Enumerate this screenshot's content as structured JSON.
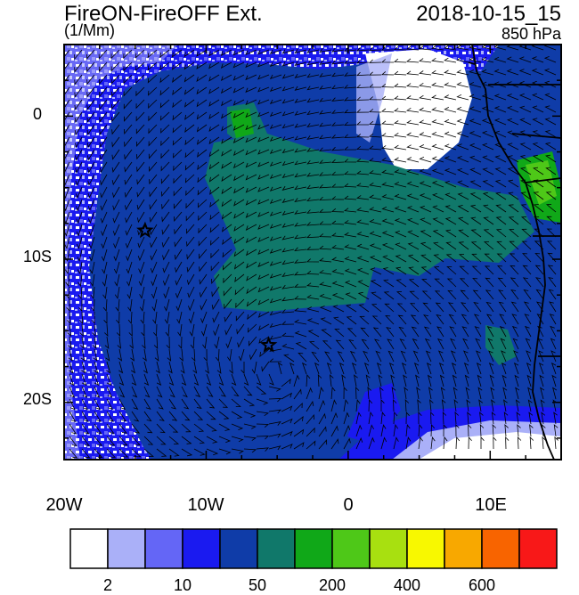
{
  "header": {
    "title": "FireON-FireOFF Ext.",
    "units": "(1/Mm)",
    "datetime": "2018-10-15_15",
    "level": "850 hPa"
  },
  "axes": {
    "y_ticks": [
      "0",
      "10S",
      "20S"
    ],
    "x_ticks": [
      "20W",
      "10W",
      "0",
      "10E"
    ],
    "lon_range": [
      -20,
      15
    ],
    "lat_range": [
      -24,
      5
    ]
  },
  "markers": {
    "stars": [
      {
        "lon": -14.3,
        "lat": -8.0
      },
      {
        "lon": -5.6,
        "lat": -16.0
      }
    ]
  },
  "colorbar": {
    "colors": [
      "#ffffff",
      "#aab0f8",
      "#6466f6",
      "#1a1af0",
      "#0f3ca8",
      "#10786a",
      "#10a818",
      "#4ec818",
      "#a8e010",
      "#f8f800",
      "#f8a800",
      "#f86400",
      "#f81818"
    ],
    "labels": [
      "2",
      "10",
      "50",
      "200",
      "400",
      "600"
    ]
  }
}
